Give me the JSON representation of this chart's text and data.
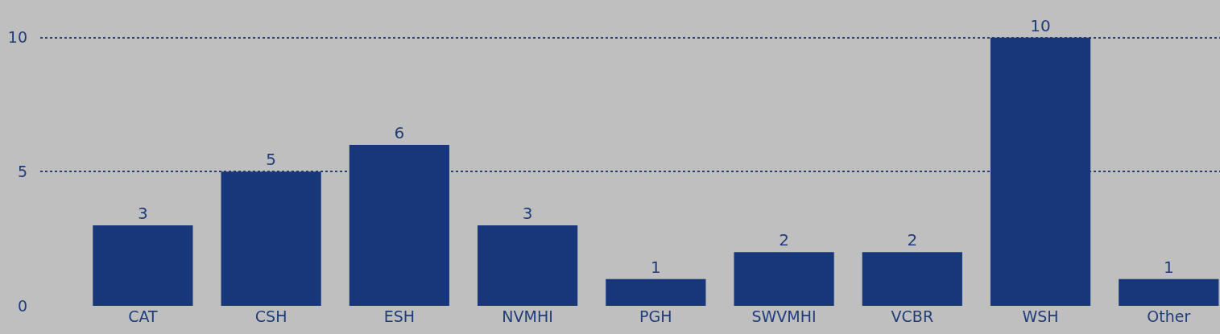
{
  "chart_data": {
    "type": "bar",
    "categories": [
      "CAT",
      "CSH",
      "ESH",
      "NVMHI",
      "PGH",
      "SWVMHI",
      "VCBR",
      "WSH",
      "Other"
    ],
    "values": [
      3,
      5,
      6,
      3,
      1,
      2,
      2,
      10,
      1
    ],
    "color": "#17377a",
    "ylim": [
      0,
      11.4
    ],
    "yticks": [
      0,
      5,
      10
    ],
    "grid": "y",
    "data_labels": true
  }
}
